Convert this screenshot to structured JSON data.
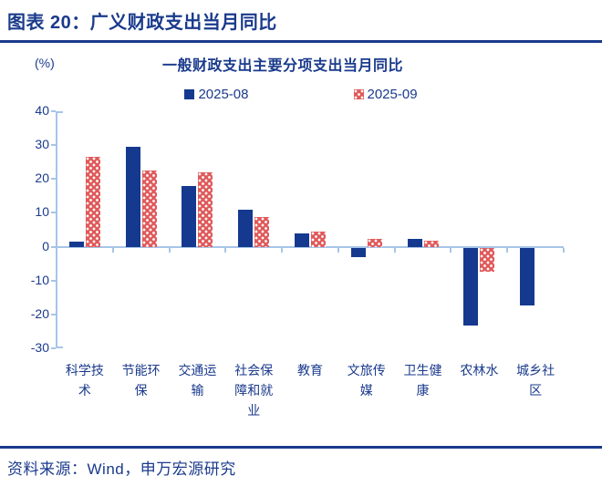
{
  "page": {
    "header_title": "图表 20：广义财政支出当月同比",
    "source_text": "资料来源：Wind，申万宏源研究"
  },
  "chart_data": {
    "type": "bar",
    "title": "一般财政支出主要分项支出当月同比",
    "unit_label": "(%)",
    "categories": [
      "科学技术",
      "节能环保",
      "交通运输",
      "社会保障和就业",
      "教育",
      "文旅传媒",
      "卫生健康",
      "农林水",
      "城乡社区"
    ],
    "series": [
      {
        "name": "2025-08",
        "color": "#15398E",
        "pattern": "solid",
        "values": [
          1.5,
          29.5,
          18,
          10.8,
          3.8,
          -2.8,
          2.3,
          -23,
          -17
        ]
      },
      {
        "name": "2025-09",
        "color": "#E05A5B",
        "pattern": "white-dots",
        "values": [
          26.5,
          22.5,
          22,
          8.7,
          4.5,
          2.2,
          1.8,
          -7,
          0
        ]
      }
    ],
    "ylim": [
      -30,
      40
    ],
    "ytick_step": 10,
    "legend_position": "top-center",
    "grid": false,
    "axis_color": "#A6C5E8",
    "text_color": "#1A3A8C"
  }
}
